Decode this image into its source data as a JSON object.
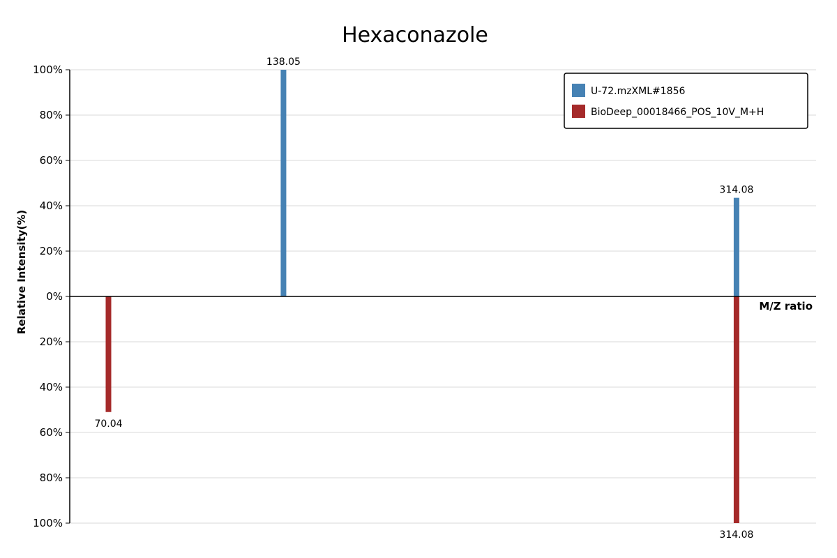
{
  "chart_data": {
    "type": "bar",
    "subtype": "mirror-mass-spectrum",
    "title": "Hexaconazole",
    "xlabel": "M/Z ratio",
    "ylabel": "Relative Intensity(%)",
    "ylim": [
      -100,
      100
    ],
    "xlim": [
      55,
      345
    ],
    "y_tick_labels": [
      "100%",
      "80%",
      "60%",
      "40%",
      "20%",
      "0%",
      "20%",
      "40%",
      "60%",
      "80%",
      "100%"
    ],
    "y_tick_values": [
      100,
      80,
      60,
      40,
      20,
      0,
      -20,
      -40,
      -60,
      -80,
      -100
    ],
    "grid": true,
    "legend_position": "top-right",
    "series": [
      {
        "name": "U-72.mzXML#1856",
        "color": "#4682b4",
        "direction": "up",
        "peaks": [
          {
            "mz": 138.05,
            "intensity": 100,
            "label": "138.05"
          },
          {
            "mz": 314.08,
            "intensity": 43.5,
            "label": "314.08"
          }
        ]
      },
      {
        "name": "BioDeep_00018466_POS_10V_M+H",
        "color": "#a52a2a",
        "direction": "down",
        "peaks": [
          {
            "mz": 70.04,
            "intensity": 51,
            "label": "70.04"
          },
          {
            "mz": 314.08,
            "intensity": 100,
            "label": "314.08"
          }
        ]
      }
    ]
  }
}
